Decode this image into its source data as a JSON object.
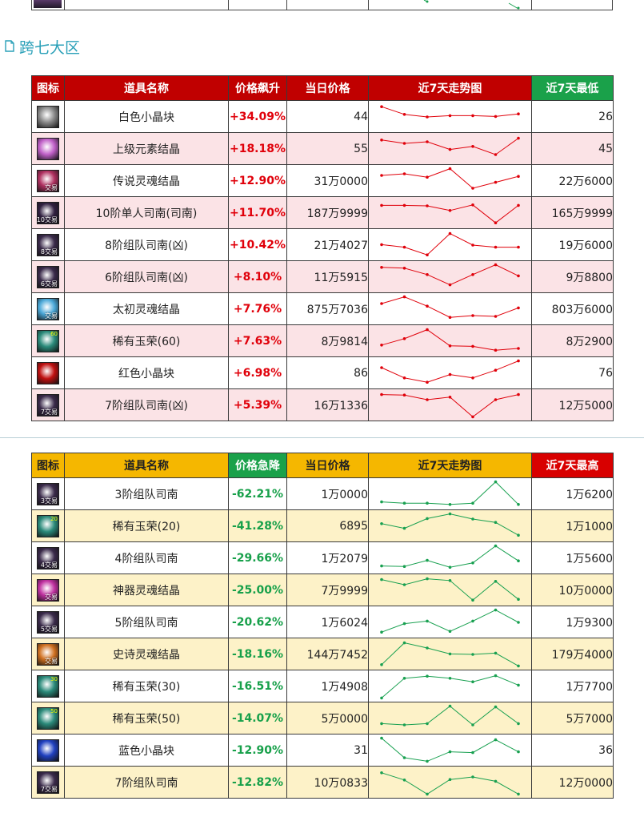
{
  "section_title": "跨七大区",
  "rise_table": {
    "headers": {
      "icon": "图标",
      "name": "道具名称",
      "change": "价格飙升",
      "price": "当日价格",
      "trend": "近7天走势图",
      "extreme": "近7天最低"
    },
    "line_color": "#e0000a",
    "rows": [
      {
        "icon": "white-crystal-icon",
        "icon_color": "#8a8a8a",
        "icon_label": "",
        "name": "白色小晶块",
        "change": "+34.09%",
        "price": "44",
        "extreme": "26",
        "trend": [
          0.9,
          0.6,
          0.5,
          0.55,
          0.55,
          0.52,
          0.62
        ]
      },
      {
        "icon": "element-crystal-icon",
        "icon_color": "#c060c8",
        "icon_label": "",
        "name": "上级元素结晶",
        "change": "+18.18%",
        "price": "55",
        "extreme": "45",
        "trend": [
          0.85,
          0.72,
          0.78,
          0.48,
          0.6,
          0.28,
          0.92
        ]
      },
      {
        "icon": "legend-soul-crystal-icon",
        "icon_color": "#b03060",
        "icon_label": "交易",
        "name": "传说灵魂结晶",
        "change": "+12.90%",
        "price": "31万0000",
        "extreme": "22万6000",
        "trend": [
          0.72,
          0.78,
          0.65,
          0.98,
          0.22,
          0.45,
          0.68
        ]
      },
      {
        "icon": "lv10-solo-compass-icon",
        "icon_color": "#302040",
        "icon_label": "10交易",
        "name": "10阶单人司南(司南)",
        "change": "+11.70%",
        "price": "187万9999",
        "extreme": "165万9999",
        "trend": [
          0.8,
          0.8,
          0.78,
          0.6,
          0.82,
          0.12,
          0.8
        ]
      },
      {
        "icon": "lv8-team-compass-icon",
        "icon_color": "#3a2a4a",
        "icon_label": "8交易",
        "name": "8阶组队司南(凶)",
        "change": "+10.42%",
        "price": "21万4027",
        "extreme": "19万6000",
        "trend": [
          0.52,
          0.42,
          0.12,
          0.95,
          0.5,
          0.42,
          0.42
        ]
      },
      {
        "icon": "lv6-team-compass-icon",
        "icon_color": "#3a2a4a",
        "icon_label": "6交易",
        "name": "6阶组队司南(凶)",
        "change": "+8.10%",
        "price": "11万5915",
        "extreme": "9万8800",
        "trend": [
          0.88,
          0.85,
          0.6,
          0.2,
          0.6,
          0.98,
          0.55
        ]
      },
      {
        "icon": "primal-soul-crystal-icon",
        "icon_color": "#4aa8d8",
        "icon_label": "交易",
        "name": "太初灵魂结晶",
        "change": "+7.76%",
        "price": "875万7036",
        "extreme": "803万6000",
        "trend": [
          0.72,
          0.98,
          0.62,
          0.18,
          0.25,
          0.22,
          0.55
        ]
      },
      {
        "icon": "rare-jade-60-icon",
        "icon_color": "#2a8a7a",
        "icon_label": "",
        "icon_num": "60",
        "name": "稀有玉荣(60)",
        "change": "+7.63%",
        "price": "8万9814",
        "extreme": "8万2900",
        "trend": [
          0.35,
          0.6,
          0.95,
          0.32,
          0.3,
          0.15,
          0.22
        ]
      },
      {
        "icon": "red-crystal-icon",
        "icon_color": "#c01010",
        "icon_label": "",
        "name": "红色小晶块",
        "change": "+6.98%",
        "price": "86",
        "extreme": "76",
        "trend": [
          0.72,
          0.32,
          0.15,
          0.45,
          0.32,
          0.62,
          0.98
        ]
      },
      {
        "icon": "lv7-team-compass-icon",
        "icon_color": "#3a2a4a",
        "icon_label": "7交易",
        "name": "7阶组队司南(凶)",
        "change": "+5.39%",
        "price": "16万1336",
        "extreme": "12万5000",
        "trend": [
          0.92,
          0.9,
          0.72,
          0.82,
          0.05,
          0.72,
          0.92
        ]
      }
    ]
  },
  "fall_table": {
    "headers": {
      "icon": "图标",
      "name": "道具名称",
      "change": "价格急降",
      "price": "当日价格",
      "trend": "近7天走势图",
      "extreme": "近7天最高"
    },
    "line_color": "#18a050",
    "rows": [
      {
        "icon": "lv3-team-compass-icon",
        "icon_color": "#3a2a4a",
        "icon_label": "3交易",
        "name": "3阶组队司南",
        "change": "-62.21%",
        "price": "1万0000",
        "extreme": "1万6200",
        "trend": [
          0.2,
          0.15,
          0.15,
          0.1,
          0.15,
          0.98,
          0.1
        ]
      },
      {
        "icon": "rare-jade-20-icon",
        "icon_color": "#2a8a7a",
        "icon_label": "",
        "icon_num": "20",
        "name": "稀有玉荣(20)",
        "change": "-41.28%",
        "price": "6895",
        "extreme": "1万1000",
        "trend": [
          0.6,
          0.42,
          0.8,
          0.98,
          0.78,
          0.65,
          0.15
        ]
      },
      {
        "icon": "lv4-team-compass-icon",
        "icon_color": "#3a2a4a",
        "icon_label": "4交易",
        "name": "4阶组队司南",
        "change": "-29.66%",
        "price": "1万2079",
        "extreme": "1万5600",
        "trend": [
          0.2,
          0.18,
          0.42,
          0.15,
          0.32,
          0.98,
          0.4
        ]
      },
      {
        "icon": "artifact-soul-crystal-icon",
        "icon_color": "#c030a0",
        "icon_label": "交易",
        "name": "神器灵魂结晶",
        "change": "-25.00%",
        "price": "7万9999",
        "extreme": "10万0000",
        "trend": [
          0.92,
          0.72,
          0.95,
          0.88,
          0.12,
          0.85,
          0.15
        ]
      },
      {
        "icon": "lv5-team-compass-icon",
        "icon_color": "#3a2a4a",
        "icon_label": "5交易",
        "name": "5阶组队司南",
        "change": "-20.62%",
        "price": "1万6024",
        "extreme": "1万9300",
        "trend": [
          0.12,
          0.45,
          0.55,
          0.15,
          0.55,
          0.98,
          0.5
        ]
      },
      {
        "icon": "epic-soul-crystal-icon",
        "icon_color": "#d07020",
        "icon_label": "交易",
        "name": "史诗灵魂结晶",
        "change": "-18.16%",
        "price": "144万7452",
        "extreme": "179万4000",
        "trend": [
          0.1,
          0.95,
          0.75,
          0.52,
          0.5,
          0.55,
          0.05
        ]
      },
      {
        "icon": "rare-jade-30-icon",
        "icon_color": "#2a8a7a",
        "icon_label": "",
        "icon_num": "30",
        "name": "稀有玉荣(30)",
        "change": "-16.51%",
        "price": "1万4908",
        "extreme": "1万7700",
        "trend": [
          0.05,
          0.82,
          0.9,
          0.82,
          0.68,
          0.92,
          0.55
        ]
      },
      {
        "icon": "rare-jade-50-icon",
        "icon_color": "#2a8a7a",
        "icon_label": "",
        "icon_num": "50",
        "name": "稀有玉荣(50)",
        "change": "-14.07%",
        "price": "5万0000",
        "extreme": "5万7000",
        "trend": [
          0.3,
          0.25,
          0.3,
          0.98,
          0.25,
          0.95,
          0.3
        ]
      },
      {
        "icon": "blue-crystal-icon",
        "icon_color": "#2040c0",
        "icon_label": "",
        "name": "蓝色小晶块",
        "change": "-12.90%",
        "price": "31",
        "extreme": "36",
        "trend": [
          0.98,
          0.22,
          0.08,
          0.45,
          0.42,
          0.92,
          0.45
        ]
      },
      {
        "icon": "lv7-team-compass-icon",
        "icon_color": "#3a2a4a",
        "icon_label": "7交易",
        "name": "7阶组队司南",
        "change": "-12.82%",
        "price": "10万0833",
        "extreme": "12万0000",
        "trend": [
          0.88,
          0.6,
          0.05,
          0.62,
          0.72,
          0.55,
          0.05
        ]
      }
    ]
  }
}
